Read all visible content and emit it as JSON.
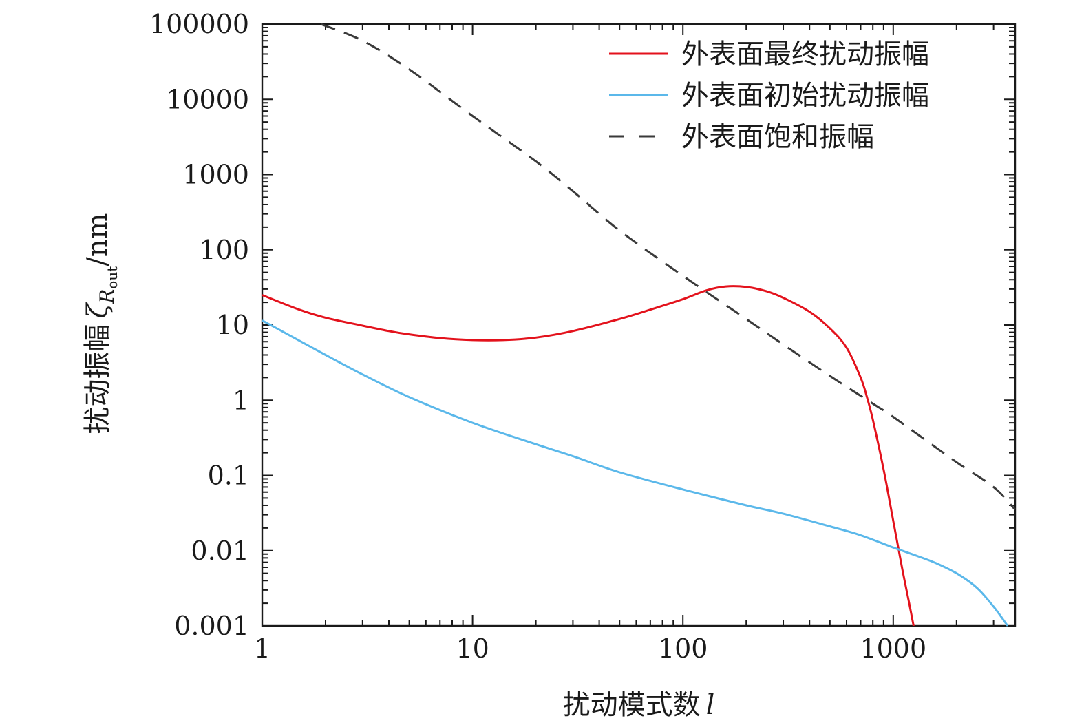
{
  "chart_data": {
    "type": "line",
    "xscale": "log",
    "yscale": "log",
    "xlim": [
      1,
      3800
    ],
    "ylim": [
      0.001,
      100000
    ],
    "grid": false,
    "legend_position": "top-right",
    "x_ticks": [
      {
        "value": 1,
        "label": "1"
      },
      {
        "value": 10,
        "label": "10"
      },
      {
        "value": 100,
        "label": "100"
      },
      {
        "value": 1000,
        "label": "1000"
      }
    ],
    "y_ticks": [
      {
        "value": 100000,
        "label": "100000"
      },
      {
        "value": 10000,
        "label": "10000"
      },
      {
        "value": 1000,
        "label": "1000"
      },
      {
        "value": 100,
        "label": "100"
      },
      {
        "value": 10,
        "label": "10"
      },
      {
        "value": 1,
        "label": "1"
      },
      {
        "value": 0.1,
        "label": "0.1"
      },
      {
        "value": 0.01,
        "label": "0.01"
      },
      {
        "value": 0.001,
        "label": "0.001"
      }
    ],
    "xlabel": {
      "text": "扰动模式数",
      "symbol": "l"
    },
    "ylabel": {
      "text": "扰动振幅",
      "symbol": "ζ",
      "subscript": "R",
      "subsubscript": "out",
      "unit": "/nm"
    },
    "series": [
      {
        "name": "外表面最终扰动振幅",
        "color": "#e3121c",
        "style": "solid",
        "points": [
          [
            1,
            25
          ],
          [
            1.5,
            16
          ],
          [
            2,
            12.5
          ],
          [
            3,
            9.8
          ],
          [
            4,
            8.3
          ],
          [
            5,
            7.5
          ],
          [
            7,
            6.7
          ],
          [
            10,
            6.3
          ],
          [
            14,
            6.3
          ],
          [
            20,
            6.8
          ],
          [
            30,
            8.3
          ],
          [
            50,
            12
          ],
          [
            70,
            16
          ],
          [
            100,
            22
          ],
          [
            130,
            29
          ],
          [
            160,
            32.5
          ],
          [
            200,
            32
          ],
          [
            250,
            28
          ],
          [
            300,
            23
          ],
          [
            400,
            15
          ],
          [
            500,
            9
          ],
          [
            600,
            5
          ],
          [
            700,
            2
          ],
          [
            750,
            1.1
          ],
          [
            800,
            0.55
          ],
          [
            900,
            0.12
          ],
          [
            1000,
            0.025
          ],
          [
            1100,
            0.006
          ],
          [
            1200,
            0.0018
          ],
          [
            1250,
            0.001
          ]
        ]
      },
      {
        "name": "外表面初始扰动振幅",
        "color": "#5bb8ea",
        "style": "solid",
        "points": [
          [
            1,
            11.5
          ],
          [
            2,
            4
          ],
          [
            3,
            2.2
          ],
          [
            5,
            1.1
          ],
          [
            10,
            0.5
          ],
          [
            20,
            0.26
          ],
          [
            30,
            0.18
          ],
          [
            50,
            0.11
          ],
          [
            100,
            0.065
          ],
          [
            200,
            0.04
          ],
          [
            300,
            0.031
          ],
          [
            500,
            0.021
          ],
          [
            700,
            0.016
          ],
          [
            1000,
            0.011
          ],
          [
            1300,
            0.0085
          ],
          [
            1600,
            0.0068
          ],
          [
            2000,
            0.005
          ],
          [
            2500,
            0.0032
          ],
          [
            3000,
            0.0018
          ],
          [
            3500,
            0.001
          ]
        ]
      },
      {
        "name": "外表面饱和振幅",
        "color": "#3a3a3a",
        "style": "dashed",
        "points": [
          [
            1.9,
            100000
          ],
          [
            3,
            60000
          ],
          [
            5,
            25000
          ],
          [
            10,
            6000
          ],
          [
            20,
            1500
          ],
          [
            30,
            600
          ],
          [
            50,
            180
          ],
          [
            100,
            45
          ],
          [
            200,
            12
          ],
          [
            300,
            5.5
          ],
          [
            500,
            2.1
          ],
          [
            800,
            0.9
          ],
          [
            1000,
            0.6
          ],
          [
            2000,
            0.15
          ],
          [
            3000,
            0.07
          ],
          [
            3800,
            0.035
          ]
        ]
      }
    ]
  }
}
